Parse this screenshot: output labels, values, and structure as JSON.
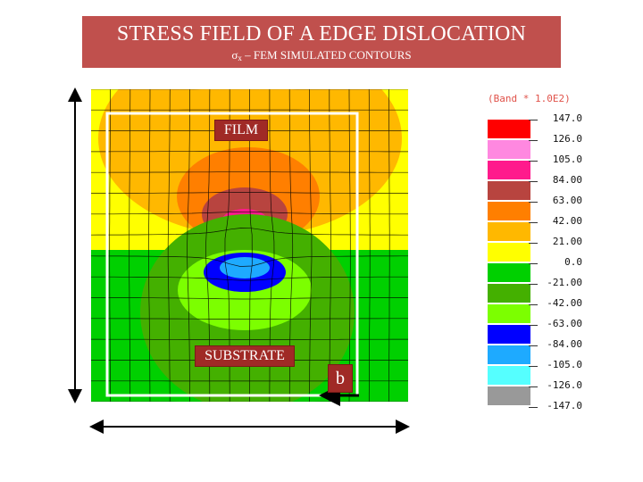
{
  "header": {
    "title": "STRESS FIELD OF A EDGE DISLOCATION",
    "subtitle_symbol": "σ",
    "subtitle_subscript": "x",
    "subtitle_text": " – FEM SIMULATED CONTOURS",
    "color": "#c0504d"
  },
  "labels": {
    "film": "FILM",
    "substrate": "SUBSTRATE",
    "burgers_vector": "b"
  },
  "legend": {
    "title": "(Band * 1.0E2)",
    "bands": [
      {
        "label": "147.0",
        "color": "#ff0000"
      },
      {
        "label": "126.0",
        "color": "#ff88e0"
      },
      {
        "label": "105.0",
        "color": "#ff1a8c"
      },
      {
        "label": "84.00",
        "color": "#b8443f"
      },
      {
        "label": "63.00",
        "color": "#ff7f00"
      },
      {
        "label": "42.00",
        "color": "#ffb800"
      },
      {
        "label": "21.00",
        "color": "#ffff00"
      },
      {
        "label": "0.0",
        "color": "#00d000"
      },
      {
        "label": "-21.00",
        "color": "#44b000"
      },
      {
        "label": "-42.00",
        "color": "#7cff00"
      },
      {
        "label": "-63.00",
        "color": "#0000ff"
      },
      {
        "label": "-84.00",
        "color": "#1eaaff"
      },
      {
        "label": "-105.0",
        "color": "#55ffff"
      },
      {
        "label": "-126.0",
        "color": "#999999"
      },
      {
        "label": "-147.0",
        "color": null
      }
    ]
  },
  "contour_colors": {
    "film_background": "#ffff00",
    "film_band_outer": "#ffb800",
    "film_band_middle": "#ff7f00",
    "film_band_inner": "#b8443f",
    "film_band_core": "#ff1a8c",
    "film_band_peak": "#ff88e0",
    "substrate_background": "#00d000",
    "substrate_band_outer": "#44b000",
    "substrate_band_inner": "#7cff00",
    "substrate_core": "#0000ff",
    "substrate_peak": "#1eaaff"
  }
}
